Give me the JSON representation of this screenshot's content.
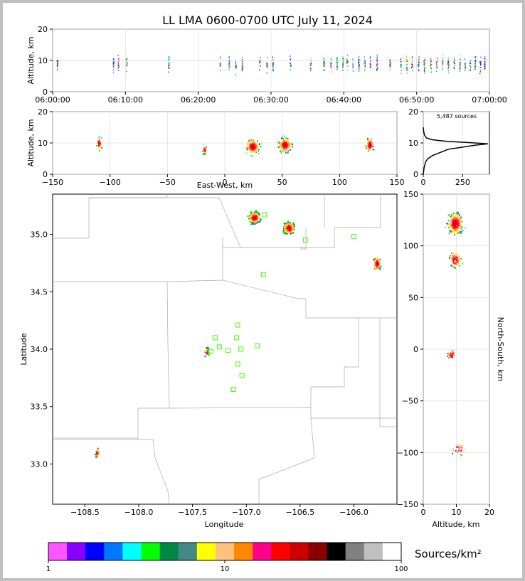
{
  "title": "LL LMA 0600-0700 UTC July 11, 2024",
  "chart_data": [
    {
      "type": "scatter",
      "id": "time-height",
      "ylabel": "Altitude, km",
      "ylim": [
        0,
        20
      ],
      "yticks": [
        0,
        10,
        20
      ],
      "xlim_minutes": [
        0,
        60
      ],
      "xticks": [
        {
          "v": 0,
          "label": "06:00:00"
        },
        {
          "v": 10,
          "label": "06:10:00"
        },
        {
          "v": 20,
          "label": "06:20:00"
        },
        {
          "v": 30,
          "label": "06:30:00"
        },
        {
          "v": 40,
          "label": "06:40:00"
        },
        {
          "v": 50,
          "label": "06:50:00"
        },
        {
          "v": 60,
          "label": "07:00:00"
        }
      ],
      "activity_minutes": [
        0.6,
        8.3,
        9.0,
        10.1,
        15.9,
        23.0,
        24.2,
        25.1,
        26.0,
        28.4,
        29.4,
        30.2,
        32.6,
        35.4,
        37.2,
        38.2,
        39.0,
        39.8,
        40.4,
        41.2,
        42.0,
        42.8,
        43.6,
        44.5,
        46.3,
        47.8,
        48.6,
        49.3,
        50.2,
        51.0,
        51.9,
        52.7,
        53.5,
        54.3,
        55.1,
        55.9,
        56.6,
        57.3,
        58.0,
        58.7,
        59.3
      ]
    },
    {
      "type": "scatter",
      "id": "ew-height",
      "xlabel": "East-West, km",
      "ylabel": "Altitude, km",
      "xlim": [
        -150,
        150
      ],
      "ylim": [
        0,
        20
      ],
      "xticks": [
        -150,
        -100,
        -50,
        0,
        50,
        100,
        150
      ],
      "yticks": [
        0,
        10,
        20
      ],
      "clusters": [
        {
          "x": -110,
          "z": 10,
          "n": 30,
          "sx": 2,
          "sz": 2
        },
        {
          "x": -18,
          "z": 8,
          "n": 40,
          "sx": 1.5,
          "sz": 1.2
        },
        {
          "x": 24,
          "z": 9,
          "n": 260,
          "sx": 5,
          "sz": 2
        },
        {
          "x": 52,
          "z": 9.5,
          "n": 260,
          "sx": 5,
          "sz": 2
        },
        {
          "x": 126,
          "z": 9.5,
          "n": 90,
          "sx": 3,
          "sz": 2
        }
      ]
    },
    {
      "type": "line",
      "id": "altitude-histogram",
      "annotation": "5,487 sources",
      "xlim": [
        0,
        420
      ],
      "ylim": [
        0,
        20
      ],
      "xticks": [
        0,
        250
      ],
      "yticks": [
        0,
        10,
        20
      ],
      "profile": [
        [
          0,
          0
        ],
        [
          5,
          2
        ],
        [
          15,
          4
        ],
        [
          30,
          5
        ],
        [
          60,
          6
        ],
        [
          110,
          7
        ],
        [
          160,
          8
        ],
        [
          240,
          8.6
        ],
        [
          330,
          9.3
        ],
        [
          410,
          9.7
        ],
        [
          300,
          10.1
        ],
        [
          150,
          10.5
        ],
        [
          60,
          11
        ],
        [
          20,
          11.6
        ],
        [
          8,
          12.5
        ],
        [
          3,
          13.5
        ],
        [
          0,
          15
        ]
      ]
    },
    {
      "type": "scatter",
      "id": "plan-view",
      "xlabel": "Longitude",
      "ylabel": "Latitude",
      "xlim": [
        -108.8,
        -105.6
      ],
      "ylim": [
        32.65,
        35.35
      ],
      "xticks": [
        {
          "v": -108.5,
          "label": "−108.5"
        },
        {
          "v": -108,
          "label": "−108.0"
        },
        {
          "v": -107.5,
          "label": "−107.5"
        },
        {
          "v": -107,
          "label": "−107.0"
        },
        {
          "v": -106.5,
          "label": "−106.5"
        },
        {
          "v": -106,
          "label": "−106.0"
        }
      ],
      "yticks": [
        {
          "v": 33,
          "label": "33.0"
        },
        {
          "v": 33.5,
          "label": "33.5"
        },
        {
          "v": 34,
          "label": "34.0"
        },
        {
          "v": 34.5,
          "label": "34.5"
        },
        {
          "v": 35,
          "label": "35.0"
        }
      ],
      "stations": [
        [
          -106.83,
          35.17
        ],
        [
          -106.45,
          34.95
        ],
        [
          -106.0,
          34.98
        ],
        [
          -106.84,
          34.65
        ],
        [
          -107.08,
          34.21
        ],
        [
          -107.29,
          34.1
        ],
        [
          -107.09,
          34.1
        ],
        [
          -107.25,
          34.02
        ],
        [
          -107.33,
          33.98
        ],
        [
          -107.17,
          33.99
        ],
        [
          -107.05,
          34.0
        ],
        [
          -106.9,
          34.03
        ],
        [
          -107.08,
          33.87
        ],
        [
          -107.04,
          33.77
        ],
        [
          -107.12,
          33.65
        ]
      ],
      "clusters": [
        {
          "lon": -106.93,
          "lat": 35.15,
          "n": 260,
          "slon": 0.045,
          "slat": 0.045
        },
        {
          "lon": -106.61,
          "lat": 35.06,
          "n": 240,
          "slon": 0.045,
          "slat": 0.045
        },
        {
          "lon": -105.79,
          "lat": 34.75,
          "n": 90,
          "slon": 0.03,
          "slat": 0.05
        },
        {
          "lon": -107.37,
          "lat": 33.98,
          "n": 40,
          "slon": 0.015,
          "slat": 0.03
        },
        {
          "lon": -108.39,
          "lat": 33.1,
          "n": 30,
          "slon": 0.015,
          "slat": 0.04
        }
      ]
    },
    {
      "type": "scatter",
      "id": "height-ns",
      "xlabel": "Altitude, km",
      "ylabel": "North-South, km",
      "xlim": [
        0,
        20
      ],
      "ylim": [
        -150,
        150
      ],
      "xticks": [
        0,
        10,
        20
      ],
      "yticks": [
        -150,
        -100,
        -50,
        0,
        50,
        100,
        150
      ],
      "clusters": [
        {
          "z": 9.5,
          "y": 122,
          "n": 320,
          "sz": 2,
          "sy": 9
        },
        {
          "z": 9.5,
          "y": 87,
          "n": 90,
          "sz": 1.6,
          "sy": 7
        },
        {
          "z": 8.5,
          "y": -5,
          "n": 40,
          "sz": 1.2,
          "sy": 4
        },
        {
          "z": 10.5,
          "y": -96,
          "n": 30,
          "sz": 2,
          "sy": 5
        }
      ]
    }
  ],
  "colorbar": {
    "label": "Sources/km²",
    "scale": "log",
    "ticks": [
      {
        "v": 1,
        "label": "1"
      },
      {
        "v": 10,
        "label": "10"
      },
      {
        "v": 100,
        "label": "100"
      }
    ],
    "colors": [
      "#ff55ff",
      "#8800ff",
      "#0000ff",
      "#0077ff",
      "#00ffff",
      "#00ff00",
      "#008844",
      "#448888",
      "#ffff00",
      "#ffc080",
      "#ff8800",
      "#ff0088",
      "#ff0000",
      "#cc0000",
      "#880000",
      "#000000",
      "#808080",
      "#c0c0c0",
      "#ffffff"
    ]
  }
}
